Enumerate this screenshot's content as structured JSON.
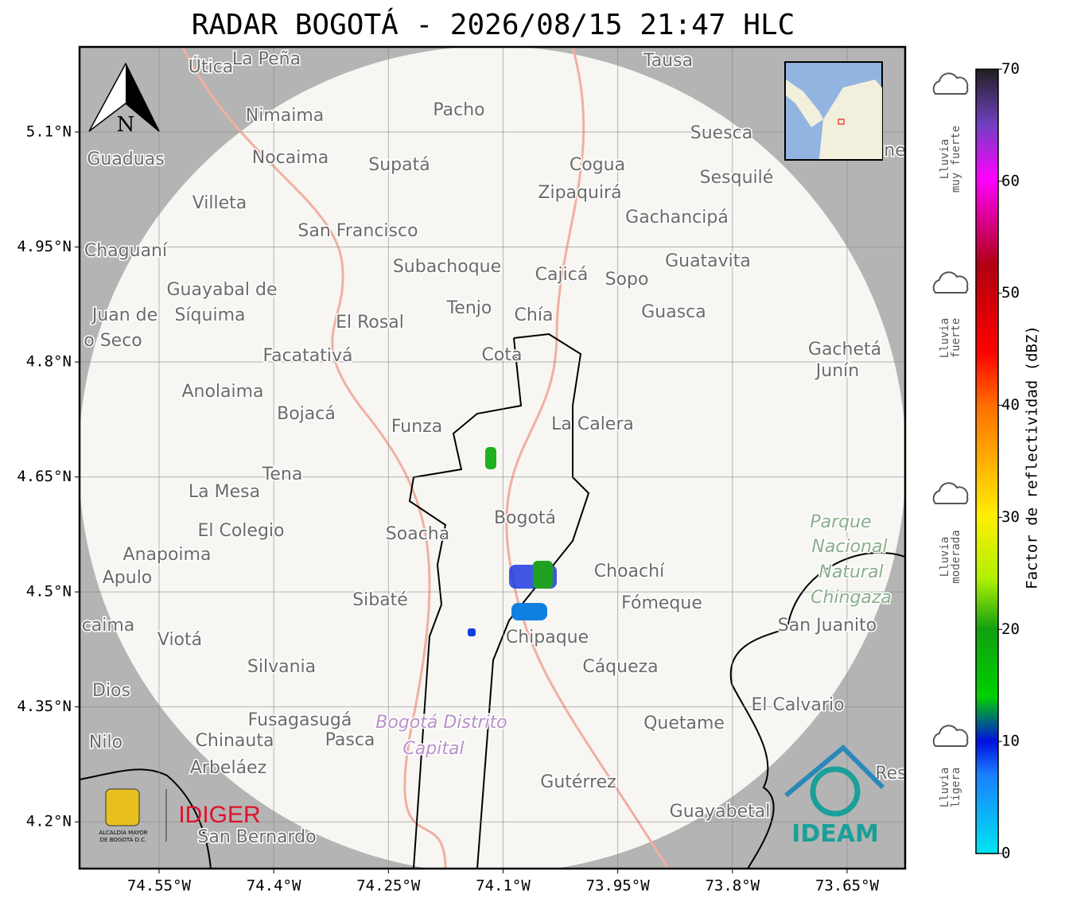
{
  "title": "RADAR BOGOTÁ - 2026/08/15 21:47 HLC",
  "map": {
    "xlim": [
      -74.654,
      -73.574
    ],
    "ylim": [
      4.139,
      5.211
    ],
    "xticks": [
      {
        "value": -74.55,
        "label": "74.55°W"
      },
      {
        "value": -74.4,
        "label": "74.4°W"
      },
      {
        "value": -74.25,
        "label": "74.25°W"
      },
      {
        "value": -74.1,
        "label": "74.1°W"
      },
      {
        "value": -73.95,
        "label": "73.95°W"
      },
      {
        "value": -73.8,
        "label": "73.8°W"
      },
      {
        "value": -73.65,
        "label": "73.65°W"
      }
    ],
    "yticks": [
      {
        "value": 4.2,
        "label": "4.2°N"
      },
      {
        "value": 4.35,
        "label": "4.35°N"
      },
      {
        "value": 4.5,
        "label": "4.5°N"
      },
      {
        "value": 4.65,
        "label": "4.65°N"
      },
      {
        "value": 4.8,
        "label": "4.8°N"
      },
      {
        "value": 4.95,
        "label": "4.95°N"
      },
      {
        "value": 5.1,
        "label": "5.1°N"
      }
    ],
    "north": "N",
    "places": [
      "Útica",
      "La Peña",
      "Tausa",
      "Pacho",
      "Nimaima",
      "Suesca",
      "Guaduas",
      "Nocaima",
      "Supatá",
      "Cogua",
      "Sesquilé",
      "Zipaquirá",
      "Villeta",
      "Gachancipá",
      "San Francisco",
      "Chaguaní",
      "Guatavita",
      "Subachoque",
      "Cajicá",
      "Sopo",
      "Guayabal de",
      "Síquima",
      "Juan de",
      "Tenjo",
      "Chía",
      "Guasca",
      "El Rosal",
      "o Seco",
      "Facatativá",
      "Cota",
      "Gachetá",
      "Junín",
      "Anolaima",
      "Bojacá",
      "Funza",
      "La Calera",
      "Tena",
      "La Mesa",
      "Bogotá",
      "Soacha",
      "El Colegio",
      "Parque",
      "Nacional",
      "Natural",
      "Chingaza",
      "Anapoima",
      "Apulo",
      "Choachí",
      "Sibaté",
      "Fómeque",
      "San Juanito",
      "caima",
      "Viotá",
      "Chipaque",
      "Silvania",
      "Cáqueza",
      "Dios",
      "El Calvario",
      "Fusagasugá",
      "Bogotá Distrito",
      "Capital",
      "Quetame",
      "Nilo",
      "Chinauta",
      "Pasca",
      "Arbeláez",
      "Gutérrez",
      "Guayabetal",
      "San Bernardo",
      "ne",
      "Res"
    ],
    "logos": {
      "alcaldia": [
        "ALCALDÍA MAYOR",
        "DE BOGOTÁ D.C."
      ],
      "idiger": "IDIGER",
      "ideam": "IDEAM"
    }
  },
  "colorbar": {
    "label": "Factor de reflectividad (dBZ)",
    "lim": [
      0,
      70
    ],
    "ticks": [
      0,
      10,
      20,
      30,
      40,
      50,
      60,
      70
    ],
    "categories": [
      [
        "Lluvia",
        "muy fuerte"
      ],
      [
        "Lluvia",
        "fuerte"
      ],
      [
        "Lluvia",
        "moderada"
      ],
      [
        "Lluvia",
        "ligera"
      ]
    ]
  }
}
